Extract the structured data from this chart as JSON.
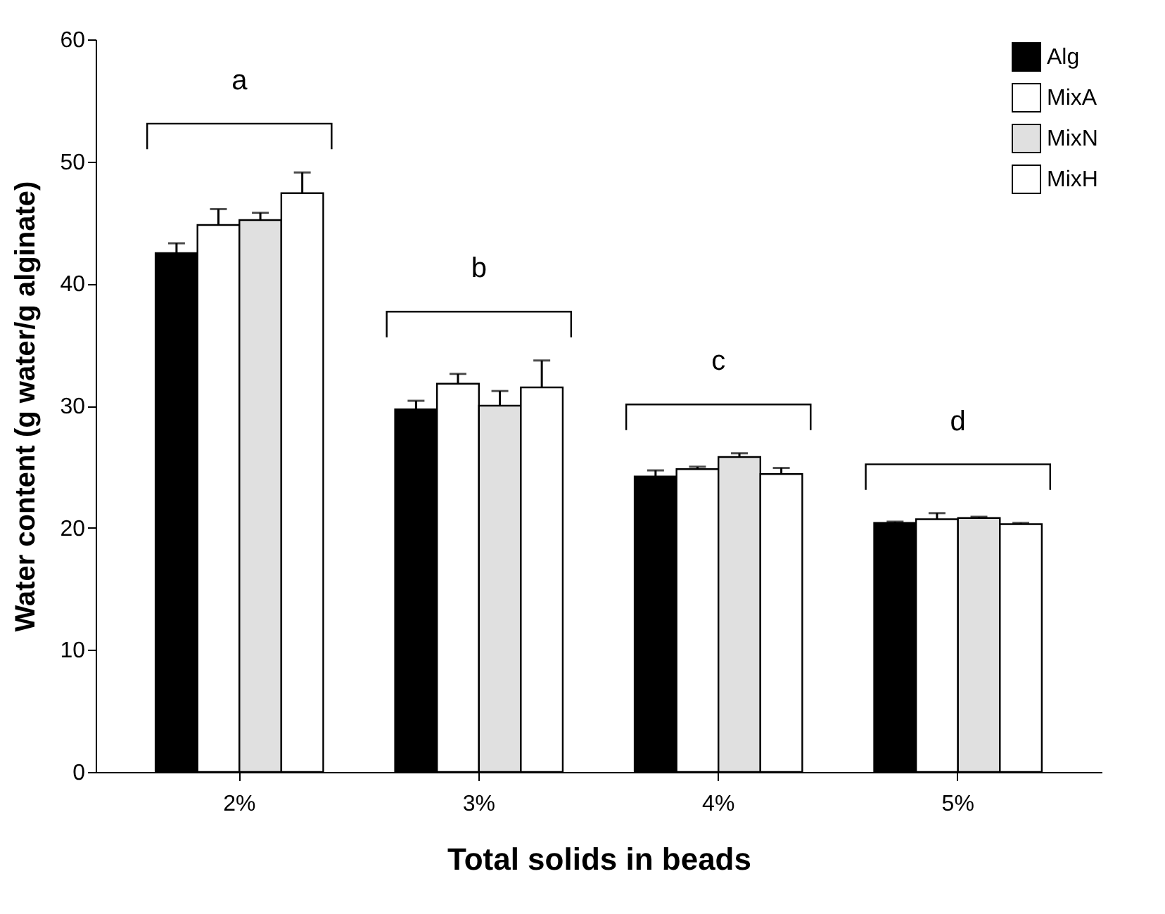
{
  "chart_data": {
    "type": "bar",
    "xlabel": "Total solids in beads",
    "ylabel": "Water content (g water/g alginate)",
    "categories": [
      "2%",
      "3%",
      "4%",
      "5%"
    ],
    "series": [
      {
        "name": "Alg",
        "color": "#000000",
        "values": [
          42.5,
          29.7,
          24.2,
          20.4
        ],
        "errors": [
          0.8,
          0.7,
          0.5,
          0.1
        ]
      },
      {
        "name": "MixA",
        "color": "#ffffff",
        "values": [
          44.8,
          31.8,
          24.8,
          20.7
        ],
        "errors": [
          1.3,
          0.8,
          0.2,
          0.5
        ]
      },
      {
        "name": "MixN",
        "color": "#e0e0e0",
        "values": [
          45.2,
          30.0,
          25.8,
          20.8
        ],
        "errors": [
          0.6,
          1.2,
          0.3,
          0.1
        ]
      },
      {
        "name": "MixH",
        "color": "#ffffff",
        "values": [
          47.4,
          31.5,
          24.4,
          20.3
        ],
        "errors": [
          1.7,
          2.2,
          0.5,
          0.1
        ]
      }
    ],
    "ylim": [
      0,
      60
    ],
    "yticks": [
      0,
      10,
      20,
      30,
      40,
      50,
      60
    ],
    "grid": false,
    "legend": "top right",
    "annotations": [
      "a",
      "b",
      "c",
      "d"
    ]
  }
}
